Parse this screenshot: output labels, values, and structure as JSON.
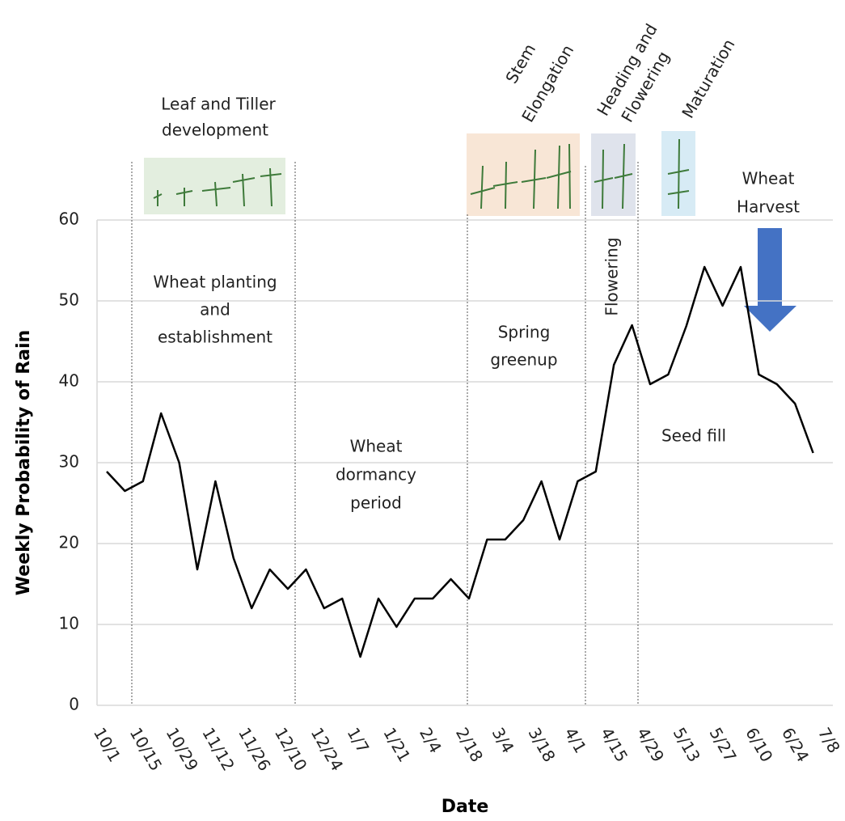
{
  "chart_data": {
    "type": "line",
    "xlabel": "Date",
    "ylabel": "Weekly Probability of Rain",
    "categories": [
      "10/1",
      null,
      "10/15",
      null,
      "10/29",
      null,
      "11/12",
      null,
      "11/26",
      null,
      "12/10",
      null,
      "12/24",
      null,
      "1/7",
      null,
      "1/21",
      null,
      "2/4",
      null,
      "2/18",
      null,
      "3/4",
      null,
      "3/18",
      null,
      "4/1",
      null,
      "4/15",
      null,
      "4/29",
      null,
      "5/13",
      null,
      "5/27",
      null,
      "6/10",
      null,
      "6/24",
      null,
      "7/8"
    ],
    "values": [
      28.9,
      26.5,
      27.7,
      36.1,
      30.0,
      16.8,
      27.7,
      18.2,
      12.0,
      16.8,
      14.4,
      16.8,
      12.0,
      13.2,
      6.0,
      13.2,
      9.7,
      13.2,
      13.2,
      15.6,
      13.2,
      20.5,
      20.5,
      22.9,
      27.7,
      20.5,
      27.7,
      28.9,
      42.1,
      47.0,
      39.7,
      40.9,
      46.9,
      54.2,
      49.4,
      54.2,
      40.9,
      39.7,
      37.3,
      31.2,
      null
    ],
    "color": "#000000",
    "ylim": [
      0,
      60
    ],
    "yticks": [
      0,
      10,
      20,
      30,
      40,
      50,
      60
    ],
    "grid": true,
    "annotations": [
      {
        "lines": [
          "Leaf and Tiller",
          "development"
        ]
      },
      {
        "lines": [
          "Stem",
          "Elongation"
        ]
      },
      {
        "lines": [
          "Heading and",
          "Flowering"
        ]
      },
      {
        "lines": [
          "Maturation"
        ]
      },
      {
        "lines": [
          "Wheat",
          "Harvest"
        ]
      },
      {
        "lines": [
          "Wheat planting",
          "and",
          "establishment"
        ]
      },
      {
        "lines": [
          "Wheat",
          "dormancy",
          "period"
        ]
      },
      {
        "lines": [
          "Spring",
          "greenup"
        ]
      },
      {
        "lines": [
          "Flowering"
        ]
      },
      {
        "lines": [
          "Seed fill"
        ]
      }
    ]
  }
}
